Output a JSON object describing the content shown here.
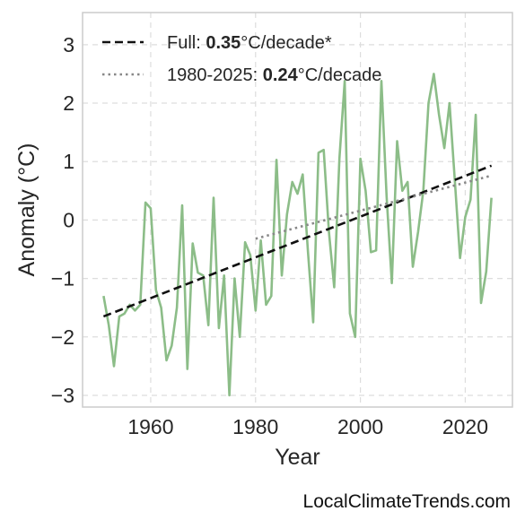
{
  "chart_data": {
    "type": "line",
    "xlabel": "Year",
    "ylabel": "Anomaly (°C)",
    "xlim": [
      1947,
      2029
    ],
    "ylim": [
      -3.2,
      3.55
    ],
    "xticks": [
      1960,
      1980,
      2000,
      2020
    ],
    "yticks": [
      -3,
      -2,
      -1,
      0,
      1,
      2,
      3
    ],
    "grid": true,
    "legend_position": "top-left",
    "series": [
      {
        "x": [
          1951,
          1952,
          1953,
          1954,
          1955,
          1956,
          1957,
          1958,
          1959,
          1960,
          1961,
          1962,
          1963,
          1964,
          1965,
          1966,
          1967,
          1968,
          1969,
          1970,
          1971,
          1972,
          1973,
          1974,
          1975,
          1976,
          1977,
          1978,
          1979,
          1980,
          1981,
          1982,
          1983,
          1984,
          1985,
          1986,
          1987,
          1988,
          1989,
          1990,
          1991,
          1992,
          1993,
          1994,
          1995,
          1996,
          1997,
          1998,
          1999,
          2000,
          2001,
          2002,
          2003,
          2004,
          2005,
          2006,
          2007,
          2008,
          2009,
          2010,
          2011,
          2012,
          2013,
          2014,
          2015,
          2016,
          2017,
          2018,
          2019,
          2020,
          2021,
          2022,
          2023,
          2024,
          2025
        ],
        "values": [
          -1.3,
          -1.8,
          -2.5,
          -1.65,
          -1.6,
          -1.45,
          -1.55,
          -1.45,
          0.3,
          0.2,
          -1.2,
          -1.5,
          -2.4,
          -2.15,
          -1.5,
          0.25,
          -2.55,
          -0.4,
          -0.9,
          -0.95,
          -1.8,
          0.38,
          -1.85,
          -0.95,
          -3.0,
          -1.0,
          -2.0,
          -0.38,
          -0.6,
          -1.55,
          -0.35,
          -1.45,
          -1.3,
          1.03,
          -0.95,
          0.1,
          0.65,
          0.45,
          0.78,
          -0.55,
          -1.75,
          1.15,
          1.2,
          -0.2,
          -1.15,
          1.05,
          2.38,
          -1.6,
          -2.0,
          1.05,
          0.5,
          -0.55,
          -0.52,
          2.38,
          0.4,
          -1.08,
          1.35,
          0.5,
          0.65,
          -0.8,
          -0.2,
          0.5,
          2.0,
          2.5,
          1.8,
          1.23,
          2.0,
          0.7,
          -0.65,
          0.05,
          0.35,
          1.8,
          -1.42,
          -0.88,
          0.38
        ],
        "color": "#8cbd88"
      }
    ],
    "trends": [
      {
        "label": "Full: ",
        "rate": "0.35",
        "unit": "°C/decade*",
        "x": [
          1951,
          2025
        ],
        "y": [
          -1.65,
          0.93
        ],
        "style": "dashed",
        "color": "#111111"
      },
      {
        "label": "1980-2025: ",
        "rate": "0.24",
        "unit": "°C/decade",
        "x": [
          1980,
          2025
        ],
        "y": [
          -0.32,
          0.76
        ],
        "style": "dotted",
        "color": "#888888"
      }
    ],
    "colors": {
      "grid": "#dddddd",
      "frame": "#cccccc"
    }
  },
  "watermark": "LocalClimateTrends.com"
}
